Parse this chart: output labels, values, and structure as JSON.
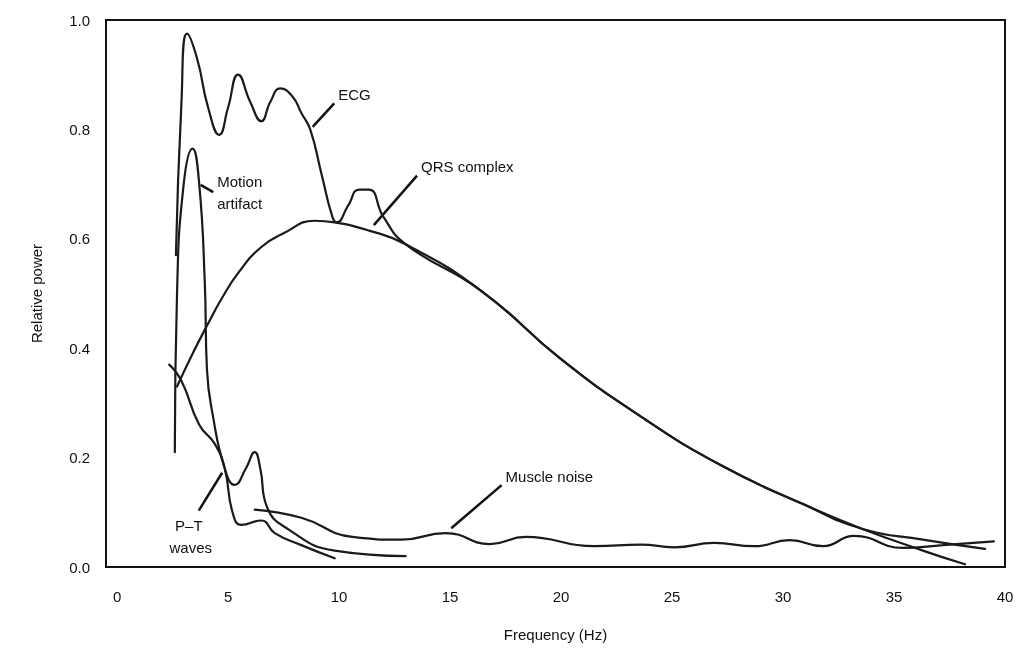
{
  "chart_data": {
    "type": "line",
    "xlabel": "Frequency (Hz)",
    "ylabel": "Relative power",
    "xlim": [
      -0.5,
      40
    ],
    "xticks": [
      0,
      5,
      10,
      15,
      20,
      25,
      30,
      35,
      40
    ],
    "ylim": [
      0,
      1
    ],
    "yticks": [
      {
        "value": 0,
        "label": "0.0"
      },
      {
        "value": 0.2,
        "label": "0.2"
      },
      {
        "value": 0.4,
        "label": "0.4"
      },
      {
        "value": 0.6,
        "label": "0.6"
      },
      {
        "value": 0.8,
        "label": "0.8"
      },
      {
        "value": 1,
        "label": "1.0"
      }
    ],
    "grid": false,
    "marker": "none",
    "line_style": "solid",
    "series": [
      {
        "name": "ECG",
        "color": "#1a1a1a",
        "x": [
          2.65,
          2.9,
          3.15,
          3.6,
          4.1,
          4.6,
          5.0,
          5.45,
          6.0,
          6.5,
          6.9,
          7.35,
          7.9,
          8.3,
          8.7,
          9.2,
          9.7,
          9.9,
          10.4,
          10.9,
          11.35,
          12.0,
          13.0,
          16.4,
          20.0,
          23.6,
          27.25,
          30.9,
          33.55,
          36.3,
          39.1
        ],
        "values": [
          0.57,
          0.85,
          0.975,
          0.93,
          0.84,
          0.79,
          0.84,
          0.9,
          0.85,
          0.815,
          0.85,
          0.875,
          0.86,
          0.83,
          0.8,
          0.72,
          0.64,
          0.63,
          0.66,
          0.69,
          0.69,
          0.64,
          0.59,
          0.505,
          0.38,
          0.275,
          0.185,
          0.115,
          0.07,
          0.05,
          0.033
        ]
      },
      {
        "name": "QRS complex",
        "color": "#1a1a1a",
        "x": [
          2.7,
          3.4,
          4.1,
          4.7,
          5.5,
          6.5,
          7.5,
          8.9,
          9.8,
          11.35,
          13.0,
          16.4,
          20.0,
          23.6,
          27.25,
          30.9,
          33.55,
          36.3,
          38.2
        ],
        "values": [
          0.33,
          0.39,
          0.445,
          0.49,
          0.54,
          0.585,
          0.61,
          0.633,
          0.63,
          0.615,
          0.59,
          0.505,
          0.38,
          0.275,
          0.185,
          0.115,
          0.07,
          0.03,
          0.005
        ]
      },
      {
        "name": "Motion artifact",
        "color": "#1a1a1a",
        "x": [
          2.6,
          2.7,
          3.0,
          3.4,
          3.7,
          3.95,
          4.05,
          4.3,
          4.85,
          5.3,
          5.8,
          6.2,
          6.45,
          6.75,
          7.75,
          9.8,
          13.0
        ],
        "values": [
          0.21,
          0.5,
          0.7,
          0.765,
          0.7,
          0.52,
          0.36,
          0.28,
          0.18,
          0.15,
          0.18,
          0.21,
          0.18,
          0.11,
          0.068,
          0.03,
          0.02
        ]
      },
      {
        "name": "P–T waves",
        "color": "#1a1a1a",
        "x": [
          2.35,
          2.9,
          3.7,
          4.4,
          4.85,
          5.2,
          5.6,
          6.5,
          7.1,
          8.3,
          9.8
        ],
        "values": [
          0.37,
          0.34,
          0.26,
          0.225,
          0.18,
          0.1,
          0.077,
          0.085,
          0.062,
          0.04,
          0.016
        ]
      },
      {
        "name": "Muscle noise",
        "color": "#1a1a1a",
        "x": [
          6.2,
          8.3,
          10.6,
          12.8,
          14.8,
          16.8,
          18.4,
          21.5,
          23.6,
          25.1,
          26.9,
          28.7,
          30.3,
          31.8,
          33.2,
          35.4,
          37.2,
          39.5
        ],
        "values": [
          0.105,
          0.09,
          0.055,
          0.05,
          0.062,
          0.042,
          0.055,
          0.038,
          0.041,
          0.036,
          0.044,
          0.038,
          0.049,
          0.038,
          0.057,
          0.035,
          0.04,
          0.047
        ]
      }
    ]
  }
}
